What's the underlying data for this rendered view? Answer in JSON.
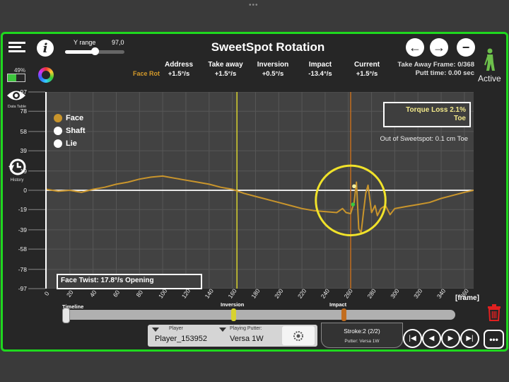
{
  "title": "SweetSpot Rotation",
  "y_range": {
    "label": "Y range",
    "value": "97,0",
    "fraction": 0.5
  },
  "battery": {
    "percent_label": "49%",
    "level": 0.49
  },
  "sidebar": {
    "data_table_label": "Data Table",
    "history_label": "History"
  },
  "metrics": {
    "row_label": "Face Rot",
    "columns": [
      {
        "label": "Address",
        "value": "+1.5°/s"
      },
      {
        "label": "Take away",
        "value": "+1.5°/s"
      },
      {
        "label": "Inversion",
        "value": "+0.5°/s"
      },
      {
        "label": "Impact",
        "value": "-13.4°/s"
      },
      {
        "label": "Current",
        "value": "+1.5°/s"
      }
    ]
  },
  "frame_info": {
    "take_away_frame": "Take Away Frame: 0/368",
    "putt_time": "Putt time: 0.00 sec"
  },
  "status": {
    "active_label": "Active"
  },
  "chart_data": {
    "type": "line",
    "ylim": [
      -97,
      97
    ],
    "xlim": [
      0,
      368
    ],
    "yticks": [
      "97",
      "78",
      "58",
      "39",
      "19",
      "0",
      "-19",
      "-39",
      "-58",
      "-78",
      "-97"
    ],
    "xticks": [
      "0",
      "20",
      "40",
      "60",
      "80",
      "100",
      "120",
      "140",
      "160",
      "180",
      "200",
      "220",
      "240",
      "260",
      "280",
      "300",
      "320",
      "340",
      "360"
    ],
    "xlabel": "[frame]",
    "legend": [
      "Face",
      "Shaft",
      "Lie"
    ],
    "series": [
      {
        "name": "Face",
        "color": "#c9952c",
        "x": [
          0,
          10,
          20,
          30,
          40,
          50,
          60,
          70,
          80,
          90,
          100,
          110,
          120,
          130,
          140,
          150,
          160,
          170,
          180,
          190,
          200,
          210,
          220,
          230,
          240,
          250,
          255,
          258,
          262,
          265,
          267,
          269,
          271,
          273,
          275,
          277,
          280,
          283,
          285,
          288,
          292,
          296,
          300,
          305,
          310,
          320,
          330,
          340,
          350,
          360,
          368
        ],
        "y": [
          1,
          -1,
          0,
          -2,
          1,
          3,
          6,
          8,
          11,
          13,
          14,
          12,
          10,
          8,
          6,
          3,
          1,
          -3,
          -6,
          -9,
          -12,
          -15,
          -18,
          -20,
          -21,
          -22,
          -18,
          -22,
          -23,
          -12,
          8,
          -38,
          -42,
          -22,
          -3,
          5,
          -22,
          -15,
          -25,
          -18,
          -15,
          -24,
          -18,
          -17,
          -16,
          -14,
          -12,
          -8,
          -5,
          -2,
          0
        ]
      }
    ],
    "markers": [
      {
        "name": "Inversion",
        "x": 164,
        "color": "#d8d22f"
      },
      {
        "name": "Impact",
        "x": 262,
        "color": "#c26d1f"
      }
    ],
    "highlight": {
      "x": 262,
      "y": -10,
      "radius_units": 30
    },
    "points": [
      {
        "x": 265,
        "y": 4,
        "color": "#f4f0a0"
      },
      {
        "x": 264,
        "y": -14,
        "color": "#39c93e"
      }
    ]
  },
  "annotations": {
    "torque_loss": "Torque Loss 2.1%",
    "torque_dir": "Toe",
    "out_of_sweetspot": "Out of Sweetspot: 0.1 cm Toe",
    "face_twist": "Face Twist:  17.8°/s Opening"
  },
  "timeline": {
    "label": "Timeline",
    "inversion_label": "Inversion",
    "impact_label": "Impact",
    "inversion_pos": 0.43,
    "impact_pos": 0.71,
    "handle_pos": 0.0
  },
  "player": {
    "label": "Player",
    "value": "Player_153952"
  },
  "putter": {
    "label": "Playing Putter:",
    "value": "Versa 1W"
  },
  "stroke": {
    "label": "Stroke:2 (2/2)",
    "putter": "Putter: Versa 1W"
  }
}
